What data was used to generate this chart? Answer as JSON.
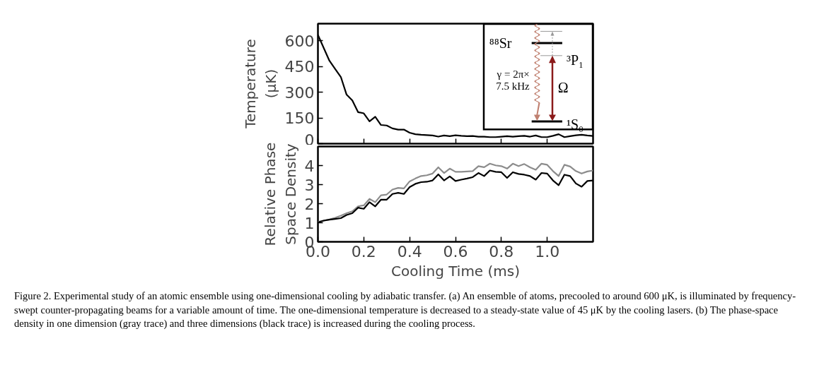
{
  "chart_data": [
    {
      "type": "line",
      "ylabel": "Temperature\n(μK)",
      "xlim": [
        0,
        1.2
      ],
      "ylim": [
        0,
        700
      ],
      "xticks": [
        0,
        0.2,
        0.4,
        0.6,
        0.8,
        1.0
      ],
      "yticks": [
        0,
        150,
        300,
        450,
        600
      ],
      "tick_labels": "y",
      "grid": false,
      "x": [
        0,
        0.025,
        0.05,
        0.075,
        0.1,
        0.125,
        0.15,
        0.175,
        0.2,
        0.225,
        0.25,
        0.275,
        0.3,
        0.325,
        0.35,
        0.375,
        0.4,
        0.425,
        0.45,
        0.475,
        0.5,
        0.525,
        0.55,
        0.575,
        0.6,
        0.625,
        0.65,
        0.675,
        0.7,
        0.725,
        0.75,
        0.775,
        0.8,
        0.825,
        0.85,
        0.875,
        0.9,
        0.925,
        0.95,
        0.975,
        1.0,
        1.025,
        1.05,
        1.075,
        1.1,
        1.125,
        1.15,
        1.175,
        1.2
      ],
      "series": [
        {
          "color": "#000000",
          "values": [
            634,
            559,
            484,
            436,
            389,
            286,
            252,
            184,
            177,
            130,
            157,
            109,
            106,
            89,
            82,
            82,
            64,
            55,
            52,
            50,
            48,
            41,
            48,
            44,
            49,
            46,
            44,
            45,
            41,
            41,
            38,
            38,
            41,
            44,
            41,
            44,
            46,
            41,
            48,
            38,
            38,
            46,
            55,
            38,
            44,
            49,
            52,
            48,
            45
          ]
        }
      ],
      "annotations": [
        "⁸⁸Sr",
        "³P₁",
        "¹S₀",
        "Ω",
        "γ = 2π×\n7.5 kHz"
      ]
    },
    {
      "type": "line",
      "ylabel": "Relative Phase\nSpace Density",
      "xlabel": "Cooling Time (ms)",
      "xlim": [
        0,
        1.2
      ],
      "ylim": [
        0,
        5
      ],
      "xticks": [
        {
          "value": 0,
          "label": "0.0"
        },
        {
          "value": 0.2,
          "label": "0.2"
        },
        {
          "value": 0.4,
          "label": "0.4"
        },
        {
          "value": 0.6,
          "label": "0.6"
        },
        {
          "value": 0.8,
          "label": "0.8"
        },
        {
          "value": 1.0,
          "label": "1.0"
        }
      ],
      "yticks": [
        0,
        1,
        2,
        3,
        4
      ],
      "grid": false,
      "x": [
        0,
        0.025,
        0.05,
        0.075,
        0.1,
        0.125,
        0.15,
        0.175,
        0.2,
        0.225,
        0.25,
        0.275,
        0.3,
        0.325,
        0.35,
        0.375,
        0.4,
        0.425,
        0.45,
        0.475,
        0.5,
        0.525,
        0.55,
        0.575,
        0.6,
        0.625,
        0.65,
        0.675,
        0.7,
        0.725,
        0.75,
        0.775,
        0.8,
        0.825,
        0.85,
        0.875,
        0.9,
        0.925,
        0.95,
        0.975,
        1.0,
        1.025,
        1.05,
        1.075,
        1.1,
        1.125,
        1.15,
        1.175,
        1.2
      ],
      "series": [
        {
          "color": "#8c8c8c",
          "values": [
            1.04,
            1.11,
            1.17,
            1.26,
            1.37,
            1.5,
            1.6,
            1.86,
            1.91,
            2.25,
            2.08,
            2.44,
            2.48,
            2.74,
            2.83,
            2.8,
            3.17,
            3.32,
            3.45,
            3.49,
            3.58,
            3.91,
            3.61,
            3.84,
            3.67,
            3.67,
            3.69,
            3.71,
            3.97,
            3.91,
            4.1,
            4.01,
            3.97,
            3.84,
            4.1,
            3.97,
            4.08,
            3.91,
            3.78,
            4.1,
            4.04,
            3.71,
            3.45,
            4.04,
            3.95,
            3.71,
            3.58,
            3.69,
            3.74
          ]
        },
        {
          "color": "#000000",
          "values": [
            1.02,
            1.11,
            1.16,
            1.2,
            1.24,
            1.41,
            1.5,
            1.79,
            1.73,
            2.08,
            1.86,
            2.21,
            2.21,
            2.51,
            2.57,
            2.51,
            2.87,
            3.04,
            3.13,
            3.15,
            3.22,
            3.54,
            3.22,
            3.43,
            3.19,
            3.26,
            3.32,
            3.39,
            3.61,
            3.45,
            3.74,
            3.67,
            3.65,
            3.35,
            3.65,
            3.56,
            3.52,
            3.45,
            3.26,
            3.61,
            3.58,
            3.22,
            2.97,
            3.52,
            3.45,
            3.06,
            2.89,
            3.19,
            3.22
          ]
        }
      ],
      "annotations": [
        "Figure 2. Experimental study of an atomic ensemble using one-dimensional cooling by adiabatic transfer. (a) An ensemble of atoms, precooled to around 600 μK, is illuminated by frequency-swept counter-propagating beams for a variable amount of time. The one-dimensional temperature is decreased to a steady-state value of 45 μK by the cooling lasers. (b) The phase-space density in one dimension (gray trace) and three dimensions (black trace) is increased during the cooling process."
      ]
    }
  ]
}
